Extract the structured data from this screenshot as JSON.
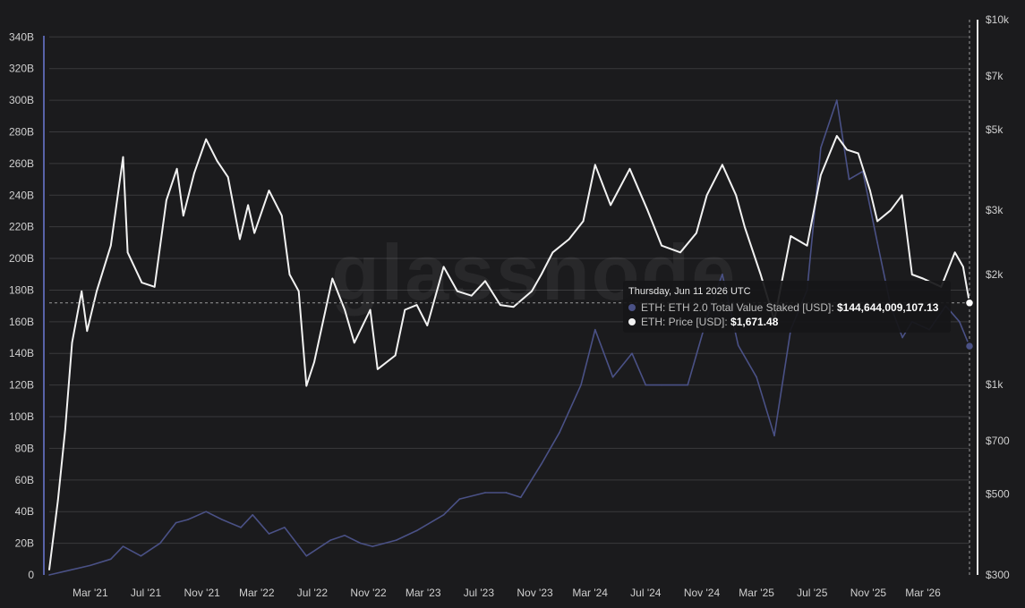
{
  "chart_data": {
    "type": "line",
    "watermark": "glassnode",
    "x_ticks": [
      "Mar '21",
      "Jul '21",
      "Nov '21",
      "Mar '22",
      "Jul '22",
      "Nov '22",
      "Mar '23",
      "Jul '23",
      "Nov '23",
      "Mar '24",
      "Jul '24",
      "Nov '24",
      "Mar '25",
      "Jul '25",
      "Nov '25",
      "Mar '26"
    ],
    "y_left": {
      "ticks": [
        "0",
        "20B",
        "40B",
        "60B",
        "80B",
        "100B",
        "120B",
        "140B",
        "160B",
        "180B",
        "200B",
        "220B",
        "240B",
        "260B",
        "280B",
        "300B",
        "320B",
        "340B"
      ],
      "ylim": [
        0,
        350
      ]
    },
    "y_right": {
      "scale": "log",
      "ticks": [
        "$300",
        "$500",
        "$700",
        "$1k",
        "$2k",
        "$3k",
        "$5k",
        "$7k",
        "$10k"
      ],
      "values": [
        300,
        500,
        700,
        1000,
        2000,
        3000,
        5000,
        7000,
        10000
      ],
      "ylim": [
        300,
        10000
      ]
    },
    "series": [
      {
        "name": "ETH: ETH 2.0 Total Value Staked [USD]",
        "color": "#4a5186",
        "axis": "left",
        "x": [
          "2020-12-01",
          "2021-01-15",
          "2021-03-01",
          "2021-04-15",
          "2021-05-12",
          "2021-06-20",
          "2021-08-01",
          "2021-09-05",
          "2021-10-01",
          "2021-11-10",
          "2021-12-15",
          "2022-01-25",
          "2022-02-20",
          "2022-03-28",
          "2022-05-01",
          "2022-06-18",
          "2022-08-10",
          "2022-09-10",
          "2022-10-15",
          "2022-11-10",
          "2023-01-01",
          "2023-02-15",
          "2023-04-15",
          "2023-05-20",
          "2023-07-15",
          "2023-08-30",
          "2023-10-01",
          "2023-11-15",
          "2023-12-25",
          "2024-02-10",
          "2024-03-12",
          "2024-04-20",
          "2024-06-01",
          "2024-07-01",
          "2024-08-05",
          "2024-10-01",
          "2024-11-15",
          "2024-12-16",
          "2025-01-20",
          "2025-03-01",
          "2025-04-09",
          "2025-05-15",
          "2025-06-20",
          "2025-07-20",
          "2025-08-24",
          "2025-09-20",
          "2025-10-20",
          "2025-11-21",
          "2025-12-20",
          "2026-01-15",
          "2026-02-05",
          "2026-03-15",
          "2026-04-20",
          "2026-05-20",
          "2026-06-11"
        ],
        "values": [
          0,
          3,
          6,
          10,
          18,
          12,
          20,
          33,
          35,
          40,
          35,
          30,
          38,
          26,
          30,
          12,
          22,
          25,
          20,
          18,
          22,
          28,
          38,
          48,
          52,
          52,
          49,
          70,
          90,
          120,
          155,
          125,
          140,
          120,
          120,
          120,
          165,
          190,
          145,
          125,
          88,
          155,
          180,
          270,
          300,
          250,
          255,
          210,
          170,
          150,
          160,
          155,
          170,
          160,
          144.6
        ]
      },
      {
        "name": "ETH: Price [USD]",
        "color": "#f2f2f2",
        "axis": "right",
        "x": [
          "2020-12-01",
          "2020-12-20",
          "2021-01-05",
          "2021-01-20",
          "2021-02-10",
          "2021-02-22",
          "2021-03-15",
          "2021-04-15",
          "2021-05-12",
          "2021-05-22",
          "2021-06-22",
          "2021-07-20",
          "2021-08-15",
          "2021-09-07",
          "2021-09-21",
          "2021-10-15",
          "2021-11-10",
          "2021-12-04",
          "2021-12-28",
          "2022-01-23",
          "2022-02-10",
          "2022-02-24",
          "2022-03-28",
          "2022-04-25",
          "2022-05-12",
          "2022-06-01",
          "2022-06-18",
          "2022-07-05",
          "2022-08-14",
          "2022-09-10",
          "2022-10-01",
          "2022-11-05",
          "2022-11-21",
          "2022-12-30",
          "2023-01-20",
          "2023-02-15",
          "2023-03-10",
          "2023-04-15",
          "2023-05-15",
          "2023-06-15",
          "2023-07-15",
          "2023-08-17",
          "2023-09-15",
          "2023-10-25",
          "2023-11-15",
          "2023-12-10",
          "2024-01-15",
          "2024-02-15",
          "2024-03-12",
          "2024-04-15",
          "2024-05-27",
          "2024-07-05",
          "2024-08-05",
          "2024-09-15",
          "2024-10-20",
          "2024-11-12",
          "2024-12-16",
          "2025-01-15",
          "2025-02-03",
          "2025-03-10",
          "2025-04-09",
          "2025-05-15",
          "2025-06-20",
          "2025-07-20",
          "2025-08-24",
          "2025-09-15",
          "2025-10-10",
          "2025-11-05",
          "2025-11-21",
          "2025-12-20",
          "2026-01-14",
          "2026-02-05",
          "2026-03-01",
          "2026-04-10",
          "2026-05-10",
          "2026-05-28",
          "2026-06-11"
        ],
        "values": [
          310,
          480,
          750,
          1300,
          1800,
          1400,
          1800,
          2400,
          4200,
          2300,
          1900,
          1850,
          3200,
          3900,
          2900,
          3800,
          4700,
          4100,
          3700,
          2500,
          3100,
          2600,
          3400,
          2900,
          2000,
          1800,
          990,
          1150,
          1950,
          1600,
          1300,
          1600,
          1100,
          1200,
          1600,
          1650,
          1450,
          2100,
          1800,
          1750,
          1920,
          1650,
          1630,
          1800,
          2000,
          2300,
          2500,
          2800,
          4000,
          3100,
          3900,
          3000,
          2400,
          2300,
          2600,
          3300,
          4000,
          3300,
          2700,
          2000,
          1500,
          2550,
          2400,
          3750,
          4800,
          4400,
          4300,
          3400,
          2800,
          3000,
          3300,
          2000,
          1950,
          1850,
          2300,
          2100,
          1671.48
        ]
      }
    ],
    "crosshair_price": 1671.48
  },
  "tooltip": {
    "date": "Thursday, Jun 11 2026 UTC",
    "row1_label": "ETH: ETH 2.0 Total Value Staked [USD]: ",
    "row1_value": "$144,644,009,107.13",
    "row2_label": "ETH: Price [USD]: ",
    "row2_value": "$1,671.48"
  }
}
